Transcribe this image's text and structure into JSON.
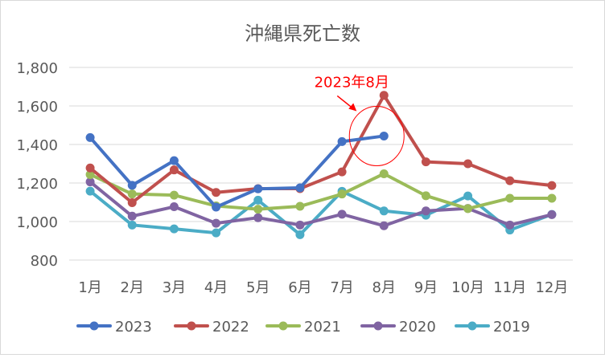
{
  "chart_data": {
    "type": "line",
    "title": "沖縄県死亡数",
    "categories": [
      "1月",
      "2月",
      "3月",
      "4月",
      "5月",
      "6月",
      "7月",
      "8月",
      "9月",
      "10月",
      "11月",
      "12月"
    ],
    "ylim": [
      800,
      1800
    ],
    "yticks": [
      800,
      1000,
      1200,
      1400,
      1600,
      1800
    ],
    "ytick_labels": [
      "800",
      "1,000",
      "1,200",
      "1,400",
      "1,600",
      "1,800"
    ],
    "grid": true,
    "legend_position": "bottom",
    "series": [
      {
        "name": "2023",
        "color": "#4472C4",
        "values": [
          1436,
          1188,
          1316,
          1075,
          1170,
          1175,
          1415,
          1444,
          null,
          null,
          null,
          null
        ]
      },
      {
        "name": "2022",
        "color": "#C0504D",
        "values": [
          1278,
          1098,
          1268,
          1151,
          1171,
          1171,
          1258,
          1655,
          1310,
          1300,
          1212,
          1187
        ]
      },
      {
        "name": "2021",
        "color": "#9BBB59",
        "values": [
          1244,
          1143,
          1137,
          1081,
          1064,
          1079,
          1143,
          1248,
          1134,
          1067,
          1121,
          1121
        ]
      },
      {
        "name": "2020",
        "color": "#8064A2",
        "values": [
          1206,
          1028,
          1077,
          991,
          1020,
          982,
          1038,
          978,
          1055,
          1068,
          982,
          1036
        ]
      },
      {
        "name": "2019",
        "color": "#4BACC6",
        "values": [
          1158,
          982,
          962,
          941,
          1111,
          932,
          1157,
          1055,
          1033,
          1133,
          956,
          1037
        ]
      }
    ],
    "annotation": {
      "text": "2023年8月",
      "color": "#FF0000",
      "category": "8月",
      "value": 1444
    }
  }
}
